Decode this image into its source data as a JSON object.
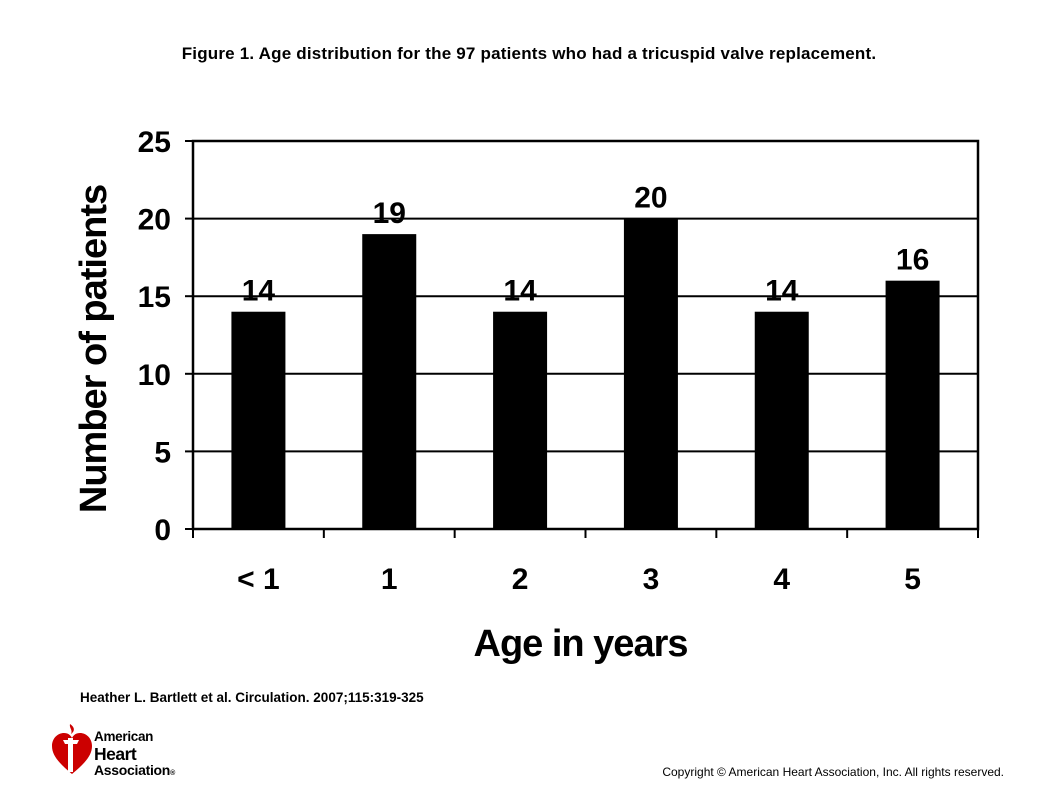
{
  "figure_title": "Figure 1. Age distribution for the 97 patients who had a tricuspid valve replacement.",
  "citation": "Heather L. Bartlett et al. Circulation. 2007;115:319-325",
  "copyright": "Copyright © American Heart Association, Inc. All rights reserved.",
  "logo": {
    "line1": "American",
    "line2": "Heart",
    "line3": "Association",
    "reg": "®",
    "icon": "heart-torch-icon",
    "color": "#cc0000"
  },
  "chart_data": {
    "type": "bar",
    "title": "",
    "xlabel": "Age in years",
    "ylabel": "Number of patients",
    "categories": [
      "< 1",
      "1",
      "2",
      "3",
      "4",
      "5"
    ],
    "values": [
      14,
      19,
      14,
      20,
      14,
      16
    ],
    "data_labels": [
      "14",
      "19",
      "14",
      "20",
      "14",
      "16"
    ],
    "ylim": [
      0,
      25
    ],
    "yticks": [
      "0",
      "5",
      "10",
      "15",
      "20",
      "25"
    ],
    "bar_color": "#000000",
    "grid": true,
    "legend": false
  }
}
